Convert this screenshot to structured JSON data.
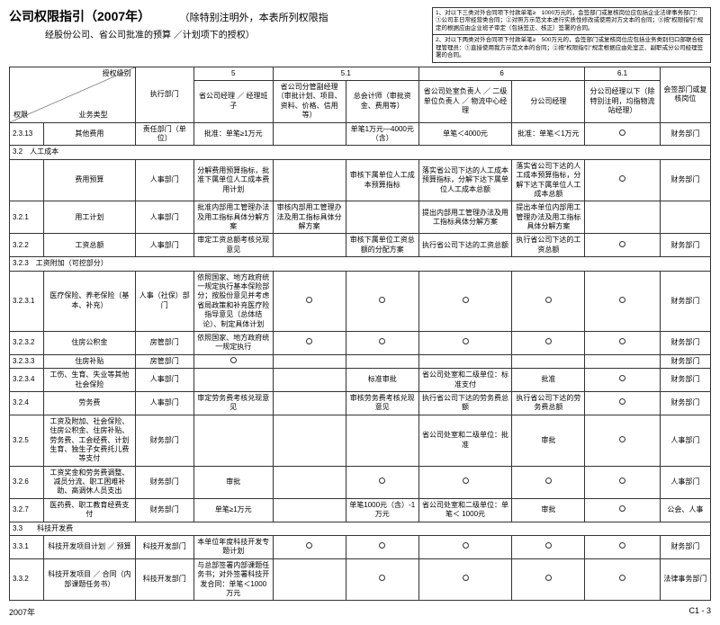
{
  "title": "公司权限指引（2007年）",
  "subtitle": "（除特别注明外，本表所列权限指",
  "subnote": "经股份公司、省公司批准的预算 ／计划项下的授权）",
  "notes": [
    "1、对以下三类对外合同项下付款单笔≥　1000万元的，会签部门或复核岗位应包括企业法律事务部门：　①公司丰日常经营类合同；②对照方示范文本进行实质性修改或使用对方文本的合同；③按\"权限指引\"规定的根据应由企业班子审定（包括签正、核正）签署的合同。",
    "2、对以下两类对外合同项下付款单笔≥　500万元的，会签部门或复核岗位应包括业务类别归口部联合经理管理员：①直接使用我方示范文本的合同；②按\"权限指引\"规定根据应由处室正、副职或分公司经理签署的合同。"
  ],
  "cols": {
    "level": "授权级别",
    "auth": "权限",
    "biz": "业务类型",
    "dept": "执行部门",
    "g5": "5",
    "g5h": "省公司经理 ／ 经理班子",
    "g51": "5.1",
    "g51a": "省公司分管副经理（审批计划、项目、资料、价格、信用等）",
    "g51b": "总会计师（审批资金、费用等）",
    "g6": "6",
    "g6a": "省公司处室负责人 ／ 二级单位负责人 ／ 物流中心经理",
    "g6b": "分公司经理",
    "g61": "6.1",
    "g61h": "分公司经理以下（除特别注明，均指物流站经理）",
    "last": "会签部门或复核岗位"
  },
  "sections": {
    "s32": "3.2　人工成本",
    "s323": "3.2.3　工资附加（可控部分）",
    "s33": "3.3　　科技开发费"
  },
  "rows": [
    {
      "id": "2.3.13",
      "name": "其他费用",
      "dept": "责任部门（单位）",
      "c5": "批准：单笔≥1万元",
      "c51a": "",
      "c51b": "单笔1万元—4000元（含）",
      "c6a": "单笔＜4000元",
      "c6b": "批准：单笔＜1万元",
      "c61": "o",
      "last": "财务部门"
    },
    {
      "id": "",
      "name": "费用预算",
      "dept": "人事部门",
      "c5": "分解费用预算指标，批准下属单位人工成本费用计划",
      "c51a": "",
      "c51b": "审核下属单位人工成本预算指标",
      "c6a": "落实省公司下达的人工成本预算指标，分解下达下属单位人工成本总额",
      "c6b": "落实省公司下达的人工成本预算指标，分解下达下属单位人工成本总额",
      "c61": "o",
      "last": "财务部门"
    },
    {
      "id": "3.2.1",
      "name": "用工计划",
      "dept": "人事部门",
      "c5": "批准内部用工管理办法及用工指标具体分解方案",
      "c51a": "审核内部用工管理办法及用工指标具体分解方案",
      "c51b": "",
      "c6a": "提出内部用工管理办法及用工指标具体分解方案",
      "c6b": "提出本单位内部用工管理办法及用工指标具体分解方案",
      "c61": "",
      "last": ""
    },
    {
      "id": "3.2.2",
      "name": "工资总额",
      "dept": "人事部门",
      "c5": "审定工资总额考核兑现意见",
      "c51a": "",
      "c51b": "审核下属单位工资总额的分配方案",
      "c6a": "执行省公司下达的工资总额",
      "c6b": "执行省公司下达的工资总额",
      "c61": "o",
      "last": "财务部门"
    },
    {
      "id": "3.2.3.1",
      "name": "医疗保险、养老保险（基本、补充）",
      "dept": "人事（社保）部门",
      "c5": "依照国家、地方政府统一规定执行基本保险部分；按股份意见并考虑省局政策和补充医疗险指导意见（总体结论）、制定具体计划",
      "c51a": "o",
      "c51b": "o",
      "c6a": "o",
      "c6b": "o",
      "c61": "o",
      "last": "财务部门"
    },
    {
      "id": "3.2.3.2",
      "name": "住房公积金",
      "dept": "房管部门",
      "c5": "依照国家、地方政府统一规定执行",
      "c51a": "o",
      "c51b": "o",
      "c6a": "o",
      "c6b": "o",
      "c61": "o",
      "last": "财务部门"
    },
    {
      "id": "3.2.3.3",
      "name": "住房补贴",
      "dept": "房管部门",
      "c5": "o",
      "c51a": "",
      "c51b": "",
      "c6a": "",
      "c6b": "",
      "c61": "",
      "last": "财务部门"
    },
    {
      "id": "3.2.3.4",
      "name": "工伤、生育、失业等其他社会保险",
      "dept": "人事部门",
      "c5": "",
      "c51a": "",
      "c51b": "标准审批",
      "c6a": "省公司处室和二级单位：标准支付",
      "c6b": "批准",
      "c61": "o",
      "last": "财务部门"
    },
    {
      "id": "3.2.4",
      "name": "劳务费",
      "dept": "人事部门",
      "c5": "审定劳务费考核兑现意见",
      "c51a": "",
      "c51b": "审核劳务费考核兑现意见",
      "c6a": "执行省公司下达的劳务费总额",
      "c6b": "执行省公司下达的劳务费总额",
      "c61": "o",
      "last": "财务部门"
    },
    {
      "id": "3.2.5",
      "name": "工资及附加、社会保险、住房公积金、住房补贴、劳务费、工会经费、计划生育、独生子女费托儿费等支付",
      "dept": "财务部门",
      "c5": "",
      "c51a": "",
      "c51b": "",
      "c6a": "省公司处室和二级单位：批准",
      "c6b": "审批",
      "c61": "o",
      "last": "人事部门"
    },
    {
      "id": "3.2.6",
      "name": "工资奖金和劳务费调整、减员分流、职工困难补助、高调休人员支出",
      "dept": "财务部门",
      "c5": "审批",
      "c51a": "",
      "c51b": "o",
      "c6a": "o",
      "c6b": "o",
      "c61": "o",
      "last": "人事部门"
    },
    {
      "id": "3.2.7",
      "name": "医药费、职工教育经费支付",
      "dept": "财务部门",
      "c5": "单笔≥1万元",
      "c51a": "",
      "c51b": "单笔1000元（含）-1万元",
      "c6a": "省公司处室和二级单位：单笔＜ 1000元",
      "c6b": "审批",
      "c61": "o",
      "last": "公会、人事"
    },
    {
      "id": "3.3.1",
      "name": "科技开发项目计划 ／ 预算",
      "dept": "科技开发部门",
      "c5": "本单位年度科技开发专题计划",
      "c51a": "o",
      "c51b": "o",
      "c6a": "o",
      "c6b": "o",
      "c61": "o",
      "last": "财务部门"
    },
    {
      "id": "3.3.2",
      "name": "科技开发项目 ／ 合同（内部课题任务书）",
      "dept": "科技开发部门",
      "c5": "与总部签署内部课题任务书；对外签署科技开发合同：单笔＜1000万元",
      "c51a": "",
      "c51b": "o",
      "c6a": "o",
      "c6b": "o",
      "c61": "o",
      "last": "法律事务部门"
    }
  ],
  "footer": {
    "left": "2007年",
    "right": "C1 - 3"
  }
}
